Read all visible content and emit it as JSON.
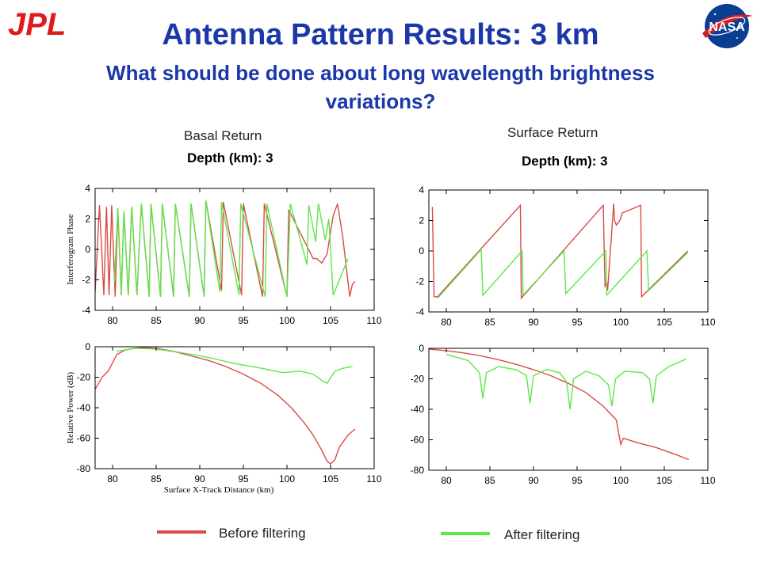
{
  "slide": {
    "title": "Antenna Pattern Results: 3 km",
    "subtitle": "What should be done about long wavelength brightness variations?",
    "logo_left_text": "JPL",
    "logo_right_text": "NASA"
  },
  "columns": {
    "left_label": "Basal Return",
    "right_label": "Surface Return",
    "depth_label": "Depth (km): 3"
  },
  "legend": {
    "before": {
      "label": "Before filtering",
      "color": "#d94b45"
    },
    "after": {
      "label": "After filtering",
      "color": "#5ee64b"
    }
  },
  "chart_data": [
    {
      "type": "line",
      "id": "basal-phase",
      "ylabel": "Interferogram Phase",
      "xlim": [
        78,
        110
      ],
      "ylim": [
        -4,
        4
      ],
      "xticks": [
        80,
        85,
        90,
        95,
        100,
        105,
        110
      ],
      "yticks": [
        -4,
        -2,
        0,
        2,
        4
      ],
      "series": [
        {
          "name": "Before filtering",
          "color": "#d94b45",
          "x": [
            78,
            78.5,
            79,
            79.3,
            79.6,
            79.9,
            80.3,
            80.6,
            81.0,
            81.3,
            81.8,
            82.2,
            82.8,
            83.3,
            84.2,
            84.4,
            85.5,
            85.7,
            87.0,
            87.2,
            88.8,
            89.0,
            90.5,
            90.7,
            92.5,
            92.7,
            94.8,
            95.0,
            97.2,
            97.4,
            100.0,
            100.2,
            103.0,
            103.4,
            104.0,
            104.6,
            105.3,
            105.8,
            106.4,
            107.2,
            107.5,
            107.8
          ],
          "y": [
            -2.8,
            2.9,
            -3.0,
            2.8,
            -3.0,
            2.9,
            -3.1,
            2.7,
            -3.0,
            2.5,
            -3.0,
            2.8,
            -3.0,
            3.0,
            -3.1,
            3.0,
            -3.1,
            3.0,
            -3.1,
            3.0,
            -3.1,
            3.0,
            -3.1,
            3.2,
            -2.7,
            3.1,
            -3.0,
            3.0,
            -3.1,
            3.0,
            -3.1,
            2.6,
            -0.6,
            -0.6,
            -0.9,
            -0.3,
            2.2,
            3.0,
            0.8,
            -3.1,
            -2.3,
            -2.1
          ]
        },
        {
          "name": "After filtering",
          "color": "#5ee64b",
          "x": [
            80.2,
            80.6,
            81.0,
            81.3,
            81.8,
            82.2,
            82.8,
            83.3,
            84.2,
            84.4,
            85.5,
            85.7,
            87.0,
            87.2,
            88.8,
            89.0,
            90.5,
            90.7,
            92.3,
            92.5,
            94.5,
            94.7,
            97.5,
            97.7,
            100.0,
            100.4,
            102.3,
            102.5,
            103.3,
            103.6,
            104.4,
            104.8,
            105.3,
            107.0
          ],
          "y": [
            -2.2,
            2.7,
            -3.0,
            2.5,
            -3.0,
            2.8,
            -3.0,
            3.0,
            -3.1,
            3.0,
            -3.1,
            3.0,
            -3.1,
            3.0,
            -3.1,
            3.0,
            -3.1,
            3.2,
            -2.8,
            3.1,
            -3.0,
            3.0,
            -3.1,
            3.0,
            -3.1,
            3.0,
            -1.0,
            2.9,
            0.5,
            3.0,
            0.6,
            2.0,
            -3.0,
            -0.6
          ]
        }
      ]
    },
    {
      "type": "line",
      "id": "surface-phase",
      "ylabel": "",
      "xlim": [
        78,
        110
      ],
      "ylim": [
        -4,
        4
      ],
      "xticks": [
        80,
        85,
        90,
        95,
        100,
        105,
        110
      ],
      "yticks": [
        -4,
        -2,
        0,
        2,
        4
      ],
      "series": [
        {
          "name": "Before filtering",
          "color": "#d94b45",
          "x": [
            78.4,
            78.6,
            79.0,
            88.5,
            88.6,
            98.0,
            98.2,
            98.4,
            98.5,
            99.2,
            99.3,
            99.5,
            99.9,
            100.2,
            102.3,
            102.4,
            107.7
          ],
          "y": [
            2.9,
            -3.0,
            -3.0,
            3.0,
            -3.1,
            3.0,
            -2.3,
            -2.1,
            -2.6,
            3.1,
            2.0,
            1.7,
            2.0,
            2.5,
            3.0,
            -3.0,
            0.0
          ]
        },
        {
          "name": "After filtering",
          "color": "#5ee64b",
          "x": [
            79.0,
            84.0,
            84.2,
            88.7,
            88.8,
            93.5,
            93.7,
            98.3,
            98.4,
            103.0,
            103.2,
            107.7
          ],
          "y": [
            -3.1,
            0.1,
            -2.9,
            0.0,
            -2.9,
            0.0,
            -2.8,
            0.0,
            -2.9,
            0.0,
            -2.6,
            -0.1
          ]
        }
      ]
    },
    {
      "type": "line",
      "id": "basal-power",
      "ylabel": "Relative Power (dB)",
      "xlabel": "Surface X-Track Distance (km)",
      "xlim": [
        78,
        110
      ],
      "ylim": [
        -80,
        0
      ],
      "xticks": [
        80,
        85,
        90,
        95,
        100,
        105,
        110
      ],
      "yticks": [
        -80,
        -60,
        -40,
        -20,
        0
      ],
      "series": [
        {
          "name": "Before filtering",
          "color": "#d94b45",
          "x": [
            78,
            78.8,
            79.5,
            80.5,
            81.5,
            82.5,
            83.5,
            85.0,
            87.0,
            89.0,
            91.0,
            93.0,
            95.0,
            97.0,
            99.0,
            100.5,
            102.0,
            103.0,
            104.0,
            104.6,
            105.0,
            105.5,
            106.0,
            107.0,
            107.8
          ],
          "y": [
            -28,
            -20,
            -16,
            -5,
            -2,
            -1,
            -0.5,
            -1,
            -3,
            -6,
            -9,
            -13,
            -18,
            -24,
            -32,
            -40,
            -50,
            -58,
            -68,
            -75,
            -77,
            -74,
            -66,
            -58,
            -54
          ]
        },
        {
          "name": "After filtering",
          "color": "#5ee64b",
          "x": [
            80.5,
            82.5,
            85.0,
            88.0,
            91.0,
            94.0,
            97.0,
            99.5,
            101.5,
            103.0,
            104.0,
            104.6,
            105.5,
            106.5,
            107.5
          ],
          "y": [
            -3,
            -1,
            -1.5,
            -4,
            -7,
            -11,
            -14,
            -17,
            -16,
            -18,
            -22,
            -24,
            -16,
            -14,
            -13
          ]
        }
      ]
    },
    {
      "type": "line",
      "id": "surface-power",
      "ylabel": "",
      "xlim": [
        78,
        110
      ],
      "ylim": [
        -80,
        0
      ],
      "xticks": [
        80,
        85,
        90,
        95,
        100,
        105,
        110
      ],
      "yticks": [
        -80,
        -60,
        -40,
        -20,
        0
      ],
      "series": [
        {
          "name": "Before filtering",
          "color": "#d94b45",
          "x": [
            78,
            80.0,
            82.0,
            84.0,
            86.0,
            88.0,
            90.0,
            92.0,
            94.0,
            96.0,
            98.0,
            99.5,
            100.0,
            100.3,
            102.0,
            104.0,
            106.0,
            107.8
          ],
          "y": [
            -0.5,
            -1.5,
            -3,
            -5,
            -7.5,
            -10.5,
            -14,
            -18,
            -23,
            -29,
            -38,
            -47,
            -63,
            -59,
            -62,
            -65,
            -69,
            -73
          ]
        },
        {
          "name": "After filtering",
          "color": "#5ee64b",
          "x": [
            80.0,
            82.5,
            83.8,
            84.2,
            84.6,
            86.0,
            88.0,
            89.2,
            89.6,
            90.0,
            91.5,
            93.0,
            93.8,
            94.2,
            94.6,
            96.0,
            97.5,
            98.6,
            99.0,
            99.4,
            100.5,
            102.5,
            103.3,
            103.7,
            104.1,
            105.5,
            107.5
          ],
          "y": [
            -4,
            -8,
            -16,
            -33,
            -16,
            -12,
            -14,
            -18,
            -36,
            -18,
            -14,
            -16,
            -22,
            -40,
            -20,
            -15,
            -18,
            -24,
            -38,
            -20,
            -15,
            -16,
            -20,
            -36,
            -18,
            -12,
            -7
          ]
        }
      ]
    }
  ]
}
